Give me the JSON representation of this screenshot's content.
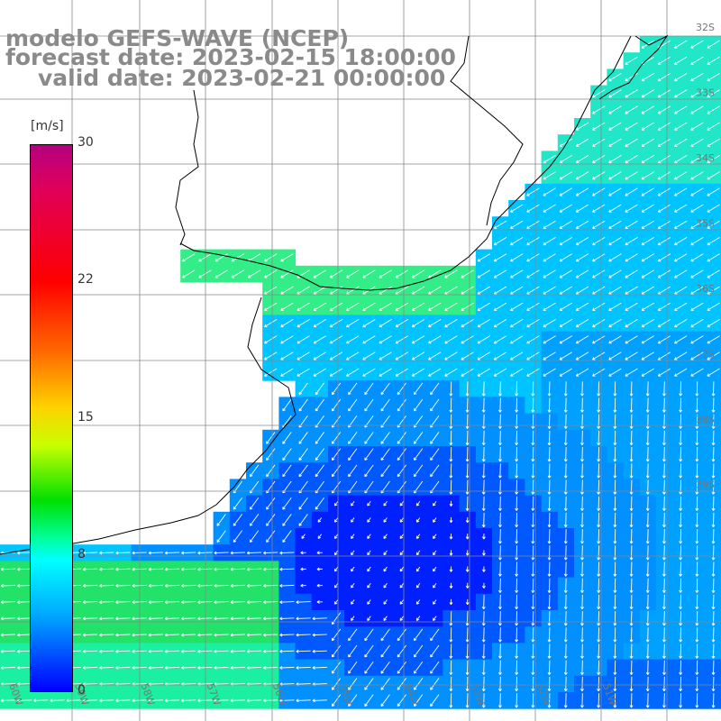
{
  "title": {
    "line1": "modelo GEFS-WAVE (NCEP)",
    "line2": "forecast date: 2023-02-15 18:00:00",
    "line3": "valid date: 2023-02-21 00:00:00"
  },
  "colorbar": {
    "unit": "[m/s]",
    "ticks": [
      "30",
      "22",
      "15",
      "8",
      "0"
    ],
    "tick_values": [
      30,
      22,
      15,
      8,
      0
    ],
    "colors": [
      "#b4007f",
      "#ff0000",
      "#ff6a00",
      "#ffd200",
      "#00e000",
      "#00ffff",
      "#00a8ff",
      "#0000ff"
    ]
  },
  "map": {
    "lat_labels": [
      "32S",
      "33S",
      "34S",
      "35S",
      "36S",
      "37S",
      "38S",
      "39S"
    ],
    "lon_labels": [
      "60W",
      "59W",
      "58W",
      "57W",
      "56W",
      "55W",
      "54W",
      "53W",
      "52W",
      "51W"
    ],
    "colors": {
      "land": "#ffffff",
      "coast": "#000000",
      "grid": "#888888",
      "arrow": "#ffffff"
    }
  }
}
